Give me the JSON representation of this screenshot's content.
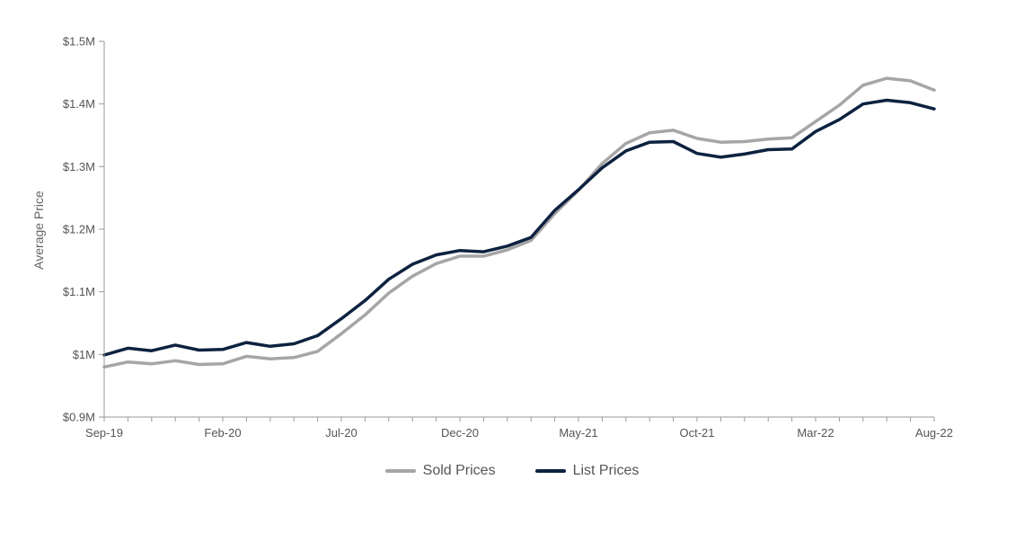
{
  "chart_data": {
    "type": "line",
    "title": "",
    "xlabel": "",
    "ylabel": "Average Price",
    "ylim": [
      900000,
      1500000
    ],
    "y_ticks": [
      {
        "value": 900000,
        "label": "$0.9M"
      },
      {
        "value": 1000000,
        "label": "$1M"
      },
      {
        "value": 1100000,
        "label": "$1.1M"
      },
      {
        "value": 1200000,
        "label": "$1.2M"
      },
      {
        "value": 1300000,
        "label": "$1.3M"
      },
      {
        "value": 1400000,
        "label": "$1.4M"
      },
      {
        "value": 1500000,
        "label": "$1.5M"
      }
    ],
    "x_tick_labels": [
      {
        "index": 0,
        "label": "Sep-19"
      },
      {
        "index": 5,
        "label": "Feb-20"
      },
      {
        "index": 10,
        "label": "Jul-20"
      },
      {
        "index": 15,
        "label": "Dec-20"
      },
      {
        "index": 20,
        "label": "May-21"
      },
      {
        "index": 25,
        "label": "Oct-21"
      },
      {
        "index": 30,
        "label": "Mar-22"
      },
      {
        "index": 35,
        "label": "Aug-22"
      }
    ],
    "x": [
      "Sep-19",
      "Oct-19",
      "Nov-19",
      "Dec-19",
      "Jan-20",
      "Feb-20",
      "Mar-20",
      "Apr-20",
      "May-20",
      "Jun-20",
      "Jul-20",
      "Aug-20",
      "Sep-20",
      "Oct-20",
      "Nov-20",
      "Dec-20",
      "Jan-21",
      "Feb-21",
      "Mar-21",
      "Apr-21",
      "May-21",
      "Jun-21",
      "Jul-21",
      "Aug-21",
      "Sep-21",
      "Oct-21",
      "Nov-21",
      "Dec-21",
      "Jan-22",
      "Feb-22",
      "Mar-22",
      "Apr-22",
      "May-22",
      "Jun-22",
      "Jul-22",
      "Aug-22"
    ],
    "series": [
      {
        "name": "Sold Prices",
        "color": "#a6a6a6",
        "values": [
          980000,
          988000,
          985000,
          990000,
          984000,
          985000,
          997000,
          993000,
          995000,
          1005000,
          1033000,
          1063000,
          1098000,
          1125000,
          1145000,
          1157000,
          1157000,
          1167000,
          1182000,
          1225000,
          1262000,
          1305000,
          1337000,
          1354000,
          1358000,
          1345000,
          1339000,
          1340000,
          1344000,
          1346000,
          1372000,
          1398000,
          1430000,
          1441000,
          1437000,
          1422000
        ]
      },
      {
        "name": "List Prices",
        "color": "#0d2240",
        "values": [
          999000,
          1010000,
          1006000,
          1015000,
          1007000,
          1008000,
          1019000,
          1013000,
          1017000,
          1030000,
          1057000,
          1086000,
          1120000,
          1144000,
          1159000,
          1166000,
          1164000,
          1173000,
          1187000,
          1230000,
          1263000,
          1298000,
          1325000,
          1339000,
          1340000,
          1321000,
          1315000,
          1320000,
          1327000,
          1328000,
          1356000,
          1375000,
          1400000,
          1406000,
          1402000,
          1392000
        ]
      }
    ],
    "grid": false,
    "legend_position": "bottom-center"
  }
}
